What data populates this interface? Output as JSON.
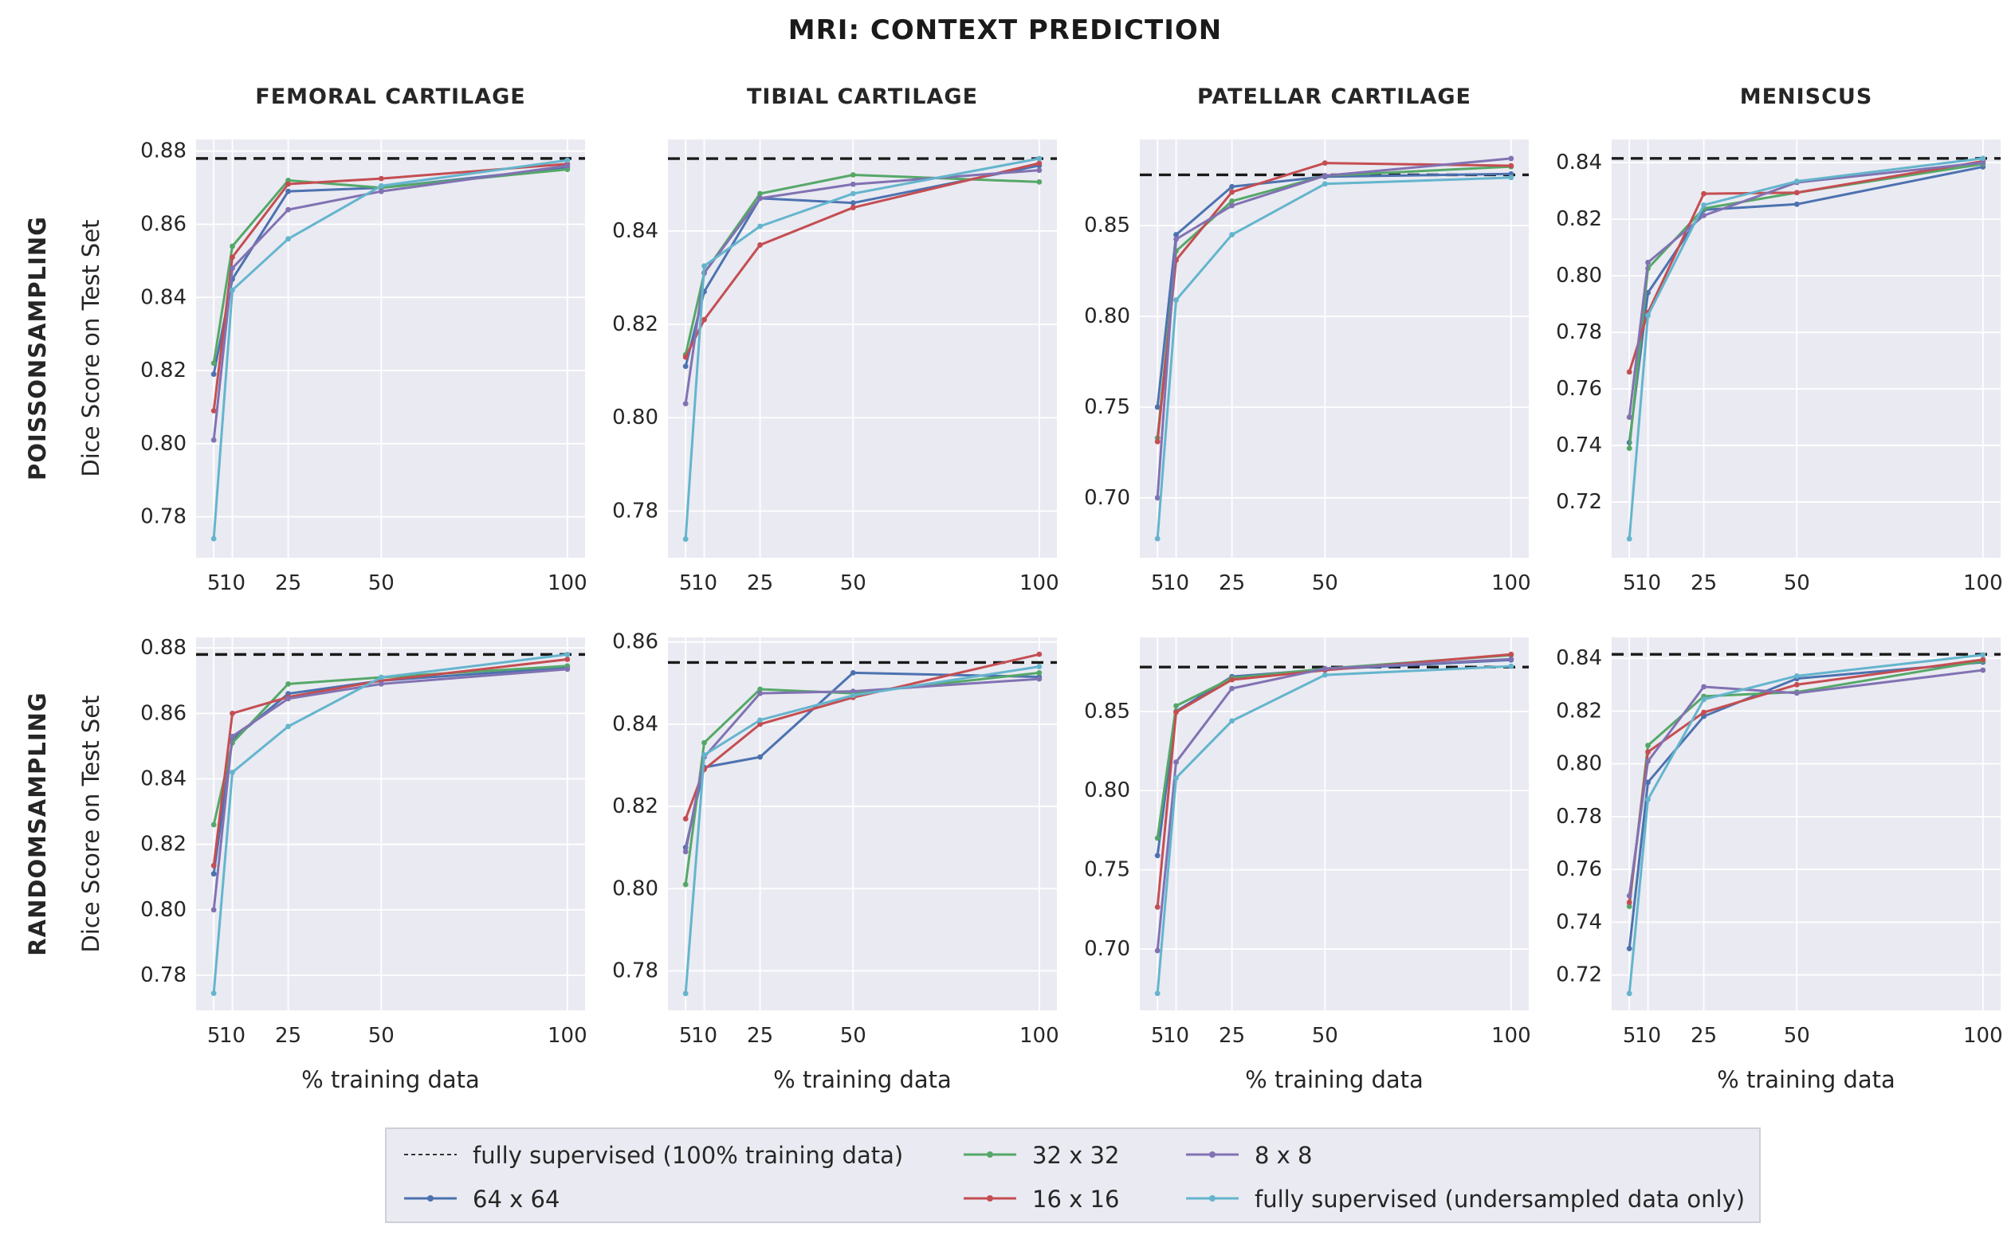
{
  "title": "MRI: CONTEXT PREDICTION",
  "ylabel": "Dice Score on Test Set",
  "xlabel": "% training data",
  "row_labels": [
    "POISSONSAMPLING",
    "RANDOMSAMPLING"
  ],
  "col_labels": [
    "FEMORAL CARTILAGE",
    "TIBIAL CARTILAGE",
    "PATELLAR CARTILAGE",
    "MENISCUS"
  ],
  "colors": {
    "plot_background": "#eaeaf2",
    "gridline": "#ffffff",
    "text": "#262626",
    "dashed_reference": "#1a1a1a",
    "64 x 64": "#4C72B0",
    "32 x 32": "#55A868",
    "16 x 16": "#C44E52",
    "8 x 8": "#8172B2",
    "fully supervised (undersampled data only)": "#64B5CD"
  },
  "legend": {
    "items": [
      {
        "label": "fully supervised (100% training data)",
        "style": "dashed",
        "color": "#1a1a1a"
      },
      {
        "label": "64 x 64",
        "style": "line",
        "color": "#4C72B0"
      },
      {
        "label": "32 x 32",
        "style": "line",
        "color": "#55A868"
      },
      {
        "label": "16 x 16",
        "style": "line",
        "color": "#C44E52"
      },
      {
        "label": "8 x 8",
        "style": "line",
        "color": "#8172B2"
      },
      {
        "label": "fully supervised (undersampled data only)",
        "style": "line",
        "color": "#64B5CD"
      }
    ]
  },
  "chart_data": {
    "type": "line",
    "x": [
      5,
      10,
      25,
      50,
      100
    ],
    "xtick_labels": [
      "5",
      "10",
      "25",
      "50",
      "100"
    ],
    "xlim": [
      0.25,
      104.75
    ],
    "grid": true,
    "legend_position": "bottom",
    "series_names": [
      "64 x 64",
      "32 x 32",
      "16 x 16",
      "8 x 8",
      "fully supervised (undersampled data only)"
    ],
    "dashed_reference_label": "fully supervised (100% training data)",
    "subplots": [
      {
        "row": 0,
        "col": 0,
        "sampling": "POISSONSAMPLING",
        "title": "FEMORAL CARTILAGE",
        "dashed": 0.878,
        "ylim": [
          0.7688,
          0.8832
        ],
        "yticks": [
          0.78,
          0.8,
          0.82,
          0.84,
          0.86,
          0.88
        ],
        "series": {
          "64 x 64": [
            0.819,
            0.845,
            0.869,
            0.87,
            0.8755
          ],
          "32 x 32": [
            0.822,
            0.854,
            0.872,
            0.87,
            0.875
          ],
          "16 x 16": [
            0.809,
            0.851,
            0.871,
            0.8725,
            0.8765
          ],
          "8 x 8": [
            0.801,
            0.848,
            0.864,
            0.869,
            0.876
          ],
          "fully supervised (undersampled data only)": [
            0.774,
            0.842,
            0.856,
            0.8705,
            0.8775
          ]
        }
      },
      {
        "row": 0,
        "col": 1,
        "sampling": "POISSONSAMPLING",
        "title": "TIBIAL CARTILAGE",
        "dashed": 0.8555,
        "ylim": [
          0.77,
          0.8596
        ],
        "yticks": [
          0.78,
          0.8,
          0.82,
          0.84
        ],
        "series": {
          "64 x 64": [
            0.811,
            0.827,
            0.847,
            0.846,
            0.854
          ],
          "32 x 32": [
            0.8135,
            0.831,
            0.848,
            0.852,
            0.8505
          ],
          "16 x 16": [
            0.813,
            0.821,
            0.837,
            0.845,
            0.8545
          ],
          "8 x 8": [
            0.803,
            0.831,
            0.847,
            0.85,
            0.853
          ],
          "fully supervised (undersampled data only)": [
            0.774,
            0.8325,
            0.841,
            0.848,
            0.8555
          ]
        }
      },
      {
        "row": 0,
        "col": 2,
        "sampling": "POISSONSAMPLING",
        "title": "PATELLAR CARTILAGE",
        "dashed": 0.878,
        "ylim": [
          0.667,
          0.8975
        ],
        "yticks": [
          0.7,
          0.75,
          0.8,
          0.85
        ],
        "series": {
          "64 x 64": [
            0.75,
            0.845,
            0.8715,
            0.877,
            0.8785
          ],
          "32 x 32": [
            0.733,
            0.836,
            0.8635,
            0.8775,
            0.8825
          ],
          "16 x 16": [
            0.731,
            0.831,
            0.8685,
            0.8845,
            0.883
          ],
          "8 x 8": [
            0.7,
            0.8425,
            0.861,
            0.8775,
            0.887
          ],
          "fully supervised (undersampled data only)": [
            0.6775,
            0.809,
            0.845,
            0.873,
            0.8765
          ]
        }
      },
      {
        "row": 0,
        "col": 3,
        "sampling": "POISSONSAMPLING",
        "title": "MENISCUS",
        "dashed": 0.8415,
        "ylim": [
          0.7003,
          0.8482
        ],
        "yticks": [
          0.72,
          0.74,
          0.76,
          0.78,
          0.8,
          0.82,
          0.84
        ],
        "series": {
          "64 x 64": [
            0.741,
            0.794,
            0.8233,
            0.8253,
            0.8385
          ],
          "32 x 32": [
            0.739,
            0.8026,
            0.8238,
            0.8294,
            0.8395
          ],
          "16 x 16": [
            0.766,
            0.787,
            0.829,
            0.8294,
            0.8405
          ],
          "8 x 8": [
            0.75,
            0.8047,
            0.8213,
            0.833,
            0.84
          ],
          "fully supervised (undersampled data only)": [
            0.707,
            0.786,
            0.825,
            0.8334,
            0.8415
          ]
        }
      },
      {
        "row": 1,
        "col": 0,
        "sampling": "RANDOMSAMPLING",
        "title": "FEMORAL CARTILAGE",
        "dashed": 0.878,
        "ylim": [
          0.7693,
          0.8832
        ],
        "yticks": [
          0.78,
          0.8,
          0.82,
          0.84,
          0.86,
          0.88
        ],
        "series": {
          "64 x 64": [
            0.811,
            0.852,
            0.866,
            0.87,
            0.874
          ],
          "32 x 32": [
            0.826,
            0.851,
            0.869,
            0.871,
            0.8745
          ],
          "16 x 16": [
            0.8135,
            0.86,
            0.865,
            0.87,
            0.8765
          ],
          "8 x 8": [
            0.8,
            0.853,
            0.8645,
            0.869,
            0.8735
          ],
          "fully supervised (undersampled data only)": [
            0.7745,
            0.842,
            0.856,
            0.871,
            0.878
          ]
        }
      },
      {
        "row": 1,
        "col": 1,
        "sampling": "RANDOMSAMPLING",
        "title": "TIBIAL CARTILAGE",
        "dashed": 0.855,
        "ylim": [
          0.7704,
          0.8611
        ],
        "yticks": [
          0.78,
          0.8,
          0.82,
          0.84,
          0.86
        ],
        "series": {
          "64 x 64": [
            0.81,
            0.8295,
            0.832,
            0.8525,
            0.8515
          ],
          "32 x 32": [
            0.801,
            0.8355,
            0.8485,
            0.8475,
            0.8525
          ],
          "16 x 16": [
            0.817,
            0.829,
            0.84,
            0.8465,
            0.857
          ],
          "8 x 8": [
            0.809,
            0.832,
            0.8475,
            0.848,
            0.851
          ],
          "fully supervised (undersampled data only)": [
            0.7745,
            0.8325,
            0.841,
            0.847,
            0.854
          ]
        }
      },
      {
        "row": 1,
        "col": 2,
        "sampling": "RANDOMSAMPLING",
        "title": "PATELLAR CARTILAGE",
        "dashed": 0.878,
        "ylim": [
          0.6613,
          0.8967
        ],
        "yticks": [
          0.7,
          0.75,
          0.8,
          0.85
        ],
        "series": {
          "64 x 64": [
            0.759,
            0.85,
            0.872,
            0.8765,
            0.8825
          ],
          "32 x 32": [
            0.77,
            0.8535,
            0.871,
            0.877,
            0.8855
          ],
          "16 x 16": [
            0.7265,
            0.8495,
            0.87,
            0.876,
            0.886
          ],
          "8 x 8": [
            0.699,
            0.818,
            0.8645,
            0.877,
            0.883
          ],
          "fully supervised (undersampled data only)": [
            0.672,
            0.808,
            0.844,
            0.873,
            0.8785
          ]
        }
      },
      {
        "row": 1,
        "col": 3,
        "sampling": "RANDOMSAMPLING",
        "title": "MENISCUS",
        "dashed": 0.8415,
        "ylim": [
          0.7066,
          0.8479
        ],
        "yticks": [
          0.72,
          0.74,
          0.76,
          0.78,
          0.8,
          0.82,
          0.84
        ],
        "series": {
          "64 x 64": [
            0.73,
            0.793,
            0.818,
            0.8323,
            0.8385
          ],
          "32 x 32": [
            0.746,
            0.807,
            0.8256,
            0.8272,
            0.839
          ],
          "16 x 16": [
            0.7475,
            0.8045,
            0.8195,
            0.83,
            0.8395
          ],
          "8 x 8": [
            0.75,
            0.801,
            0.8292,
            0.8268,
            0.8355
          ],
          "fully supervised (undersampled data only)": [
            0.713,
            0.7865,
            0.8244,
            0.8333,
            0.8413
          ]
        }
      }
    ]
  }
}
